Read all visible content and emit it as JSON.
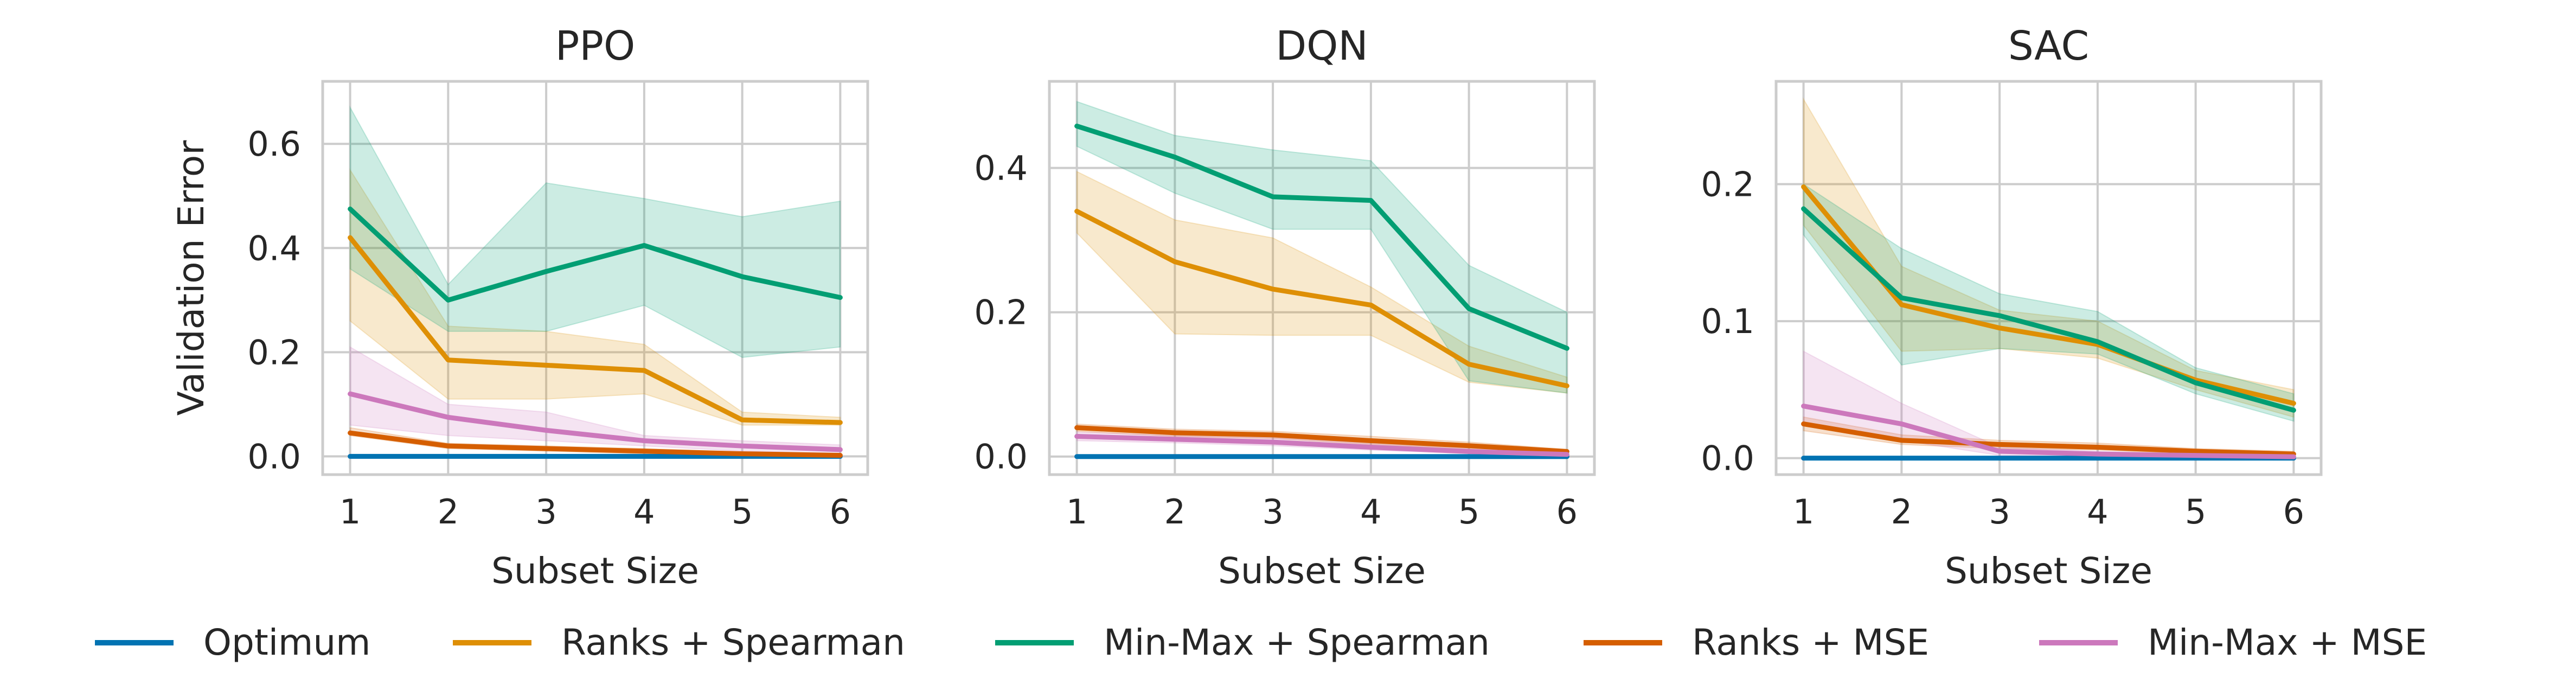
{
  "chart_data": [
    {
      "type": "line",
      "title": "PPO",
      "xlabel": "Subset Size",
      "ylabel": "Validation Error",
      "x": [
        1,
        2,
        3,
        4,
        5,
        6
      ],
      "xlim": [
        0.72,
        6.28
      ],
      "ylim": [
        -0.035,
        0.72
      ],
      "yticks": [
        0.0,
        0.2,
        0.4,
        0.6
      ],
      "ytick_labels": [
        "0.0",
        "0.2",
        "0.4",
        "0.6"
      ],
      "grid": true,
      "series": [
        {
          "name": "Optimum",
          "values": [
            0,
            0,
            0,
            0,
            0,
            0
          ],
          "lower": null,
          "upper": null
        },
        {
          "name": "Ranks + Spearman",
          "values": [
            0.42,
            0.185,
            0.175,
            0.165,
            0.07,
            0.065
          ],
          "lower": [
            0.26,
            0.11,
            0.11,
            0.12,
            0.06,
            0.06
          ],
          "upper": [
            0.55,
            0.25,
            0.24,
            0.215,
            0.085,
            0.075
          ]
        },
        {
          "name": "Min-Max + Spearman",
          "values": [
            0.475,
            0.3,
            0.355,
            0.405,
            0.345,
            0.305
          ],
          "lower": [
            0.36,
            0.24,
            0.24,
            0.29,
            0.19,
            0.21
          ],
          "upper": [
            0.67,
            0.33,
            0.525,
            0.495,
            0.46,
            0.49
          ]
        },
        {
          "name": "Ranks + MSE",
          "values": [
            0.045,
            0.02,
            0.015,
            0.01,
            0.005,
            0.002
          ],
          "lower": [
            0.04,
            0.015,
            0.01,
            0.005,
            0.002,
            0.0
          ],
          "upper": [
            0.055,
            0.025,
            0.02,
            0.015,
            0.008,
            0.005
          ]
        },
        {
          "name": "Min-Max + MSE",
          "values": [
            0.12,
            0.075,
            0.05,
            0.03,
            0.02,
            0.013
          ],
          "lower": [
            0.06,
            0.04,
            0.03,
            0.02,
            0.01,
            0.005
          ],
          "upper": [
            0.21,
            0.1,
            0.085,
            0.04,
            0.03,
            0.022
          ]
        }
      ]
    },
    {
      "type": "line",
      "title": "DQN",
      "xlabel": "Subset Size",
      "ylabel": "",
      "x": [
        1,
        2,
        3,
        4,
        5,
        6
      ],
      "xlim": [
        0.72,
        6.28
      ],
      "ylim": [
        -0.025,
        0.52
      ],
      "yticks": [
        0.0,
        0.2,
        0.4
      ],
      "ytick_labels": [
        "0.0",
        "0.2",
        "0.4"
      ],
      "grid": true,
      "series": [
        {
          "name": "Optimum",
          "values": [
            0,
            0,
            0,
            0,
            0,
            0
          ],
          "lower": null,
          "upper": null
        },
        {
          "name": "Ranks + Spearman",
          "values": [
            0.34,
            0.27,
            0.232,
            0.21,
            0.128,
            0.098
          ],
          "lower": [
            0.31,
            0.17,
            0.168,
            0.168,
            0.103,
            0.088
          ],
          "upper": [
            0.395,
            0.328,
            0.303,
            0.235,
            0.153,
            0.11
          ]
        },
        {
          "name": "Min-Max + Spearman",
          "values": [
            0.458,
            0.415,
            0.36,
            0.355,
            0.205,
            0.15
          ],
          "lower": [
            0.43,
            0.365,
            0.315,
            0.315,
            0.105,
            0.088
          ],
          "upper": [
            0.492,
            0.445,
            0.425,
            0.41,
            0.265,
            0.2
          ]
        },
        {
          "name": "Ranks + MSE",
          "values": [
            0.04,
            0.033,
            0.03,
            0.022,
            0.015,
            0.007
          ],
          "lower": [
            0.035,
            0.028,
            0.025,
            0.017,
            0.01,
            0.004
          ],
          "upper": [
            0.045,
            0.038,
            0.035,
            0.028,
            0.02,
            0.01
          ]
        },
        {
          "name": "Min-Max + MSE",
          "values": [
            0.028,
            0.024,
            0.02,
            0.013,
            0.007,
            0.003
          ],
          "lower": [
            0.022,
            0.019,
            0.015,
            0.009,
            0.004,
            0.0
          ],
          "upper": [
            0.034,
            0.029,
            0.026,
            0.018,
            0.012,
            0.006
          ]
        }
      ]
    },
    {
      "type": "line",
      "title": "SAC",
      "xlabel": "Subset Size",
      "ylabel": "",
      "x": [
        1,
        2,
        3,
        4,
        5,
        6
      ],
      "xlim": [
        0.72,
        6.28
      ],
      "ylim": [
        -0.012,
        0.275
      ],
      "yticks": [
        0.0,
        0.1,
        0.2
      ],
      "ytick_labels": [
        "0.0",
        "0.1",
        "0.2"
      ],
      "grid": true,
      "series": [
        {
          "name": "Optimum",
          "values": [
            0,
            0,
            0,
            0,
            0,
            0
          ],
          "lower": null,
          "upper": null
        },
        {
          "name": "Ranks + Spearman",
          "values": [
            0.198,
            0.112,
            0.095,
            0.083,
            0.057,
            0.04
          ],
          "lower": [
            0.17,
            0.078,
            0.08,
            0.073,
            0.05,
            0.03
          ],
          "upper": [
            0.262,
            0.14,
            0.108,
            0.1,
            0.064,
            0.05
          ]
        },
        {
          "name": "Min-Max + Spearman",
          "values": [
            0.182,
            0.117,
            0.104,
            0.085,
            0.055,
            0.035
          ],
          "lower": [
            0.163,
            0.068,
            0.08,
            0.076,
            0.047,
            0.027
          ],
          "upper": [
            0.2,
            0.153,
            0.12,
            0.107,
            0.066,
            0.047
          ]
        },
        {
          "name": "Ranks + MSE",
          "values": [
            0.025,
            0.013,
            0.01,
            0.008,
            0.005,
            0.003
          ],
          "lower": [
            0.02,
            0.01,
            0.007,
            0.006,
            0.003,
            0.001
          ],
          "upper": [
            0.03,
            0.017,
            0.013,
            0.011,
            0.007,
            0.005
          ]
        },
        {
          "name": "Min-Max + MSE",
          "values": [
            0.038,
            0.025,
            0.005,
            0.003,
            0.002,
            0.001
          ],
          "lower": [
            0.025,
            0.013,
            0.002,
            0.001,
            0.0,
            0.0
          ],
          "upper": [
            0.078,
            0.04,
            0.008,
            0.005,
            0.003,
            0.002
          ]
        }
      ]
    }
  ],
  "legend": {
    "placement": "bottom",
    "items": [
      {
        "name": "Optimum",
        "color": "#0173b2"
      },
      {
        "name": "Ranks + Spearman",
        "color": "#de8f05"
      },
      {
        "name": "Min-Max + Spearman",
        "color": "#029e73"
      },
      {
        "name": "Ranks + MSE",
        "color": "#d55e00"
      },
      {
        "name": "Min-Max + MSE",
        "color": "#cc78bc"
      }
    ]
  }
}
